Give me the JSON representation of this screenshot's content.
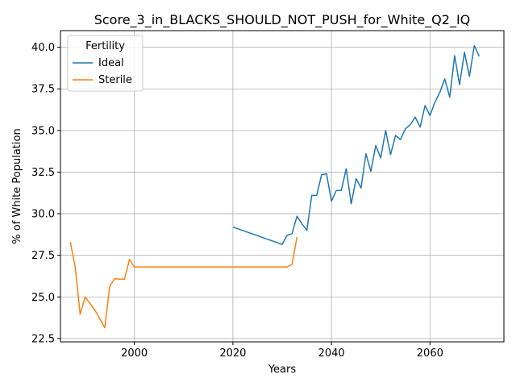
{
  "chart_data": {
    "type": "line",
    "title": "Score_3_in_BLACKS_SHOULD_NOT_PUSH_for_White_Q2_IQ",
    "xlabel": "Years",
    "ylabel": "% of White Population",
    "xlim": [
      1985,
      2075
    ],
    "ylim": [
      22.3,
      41.0
    ],
    "x_ticks": [
      2000,
      2020,
      2040,
      2060
    ],
    "x_tick_labels": [
      "2000",
      "2020",
      "2040",
      "2060"
    ],
    "y_ticks": [
      22.5,
      25.0,
      27.5,
      30.0,
      32.5,
      35.0,
      37.5,
      40.0
    ],
    "y_tick_labels": [
      "22.5",
      "25.0",
      "27.5",
      "30.0",
      "32.5",
      "35.0",
      "37.5",
      "40.0"
    ],
    "grid": true,
    "legend": {
      "title": "Fertility",
      "placement": "top-left"
    },
    "series": [
      {
        "name": "Ideal",
        "color": "#1f77b4",
        "x": [
          2020,
          2030,
          2031,
          2032,
          2033,
          2034,
          2035,
          2036,
          2037,
          2038,
          2039,
          2040,
          2041,
          2042,
          2043,
          2044,
          2045,
          2046,
          2047,
          2048,
          2049,
          2050,
          2051,
          2052,
          2053,
          2054,
          2055,
          2056,
          2057,
          2058,
          2059,
          2060,
          2061,
          2062,
          2063,
          2064,
          2065,
          2066,
          2067,
          2068,
          2069,
          2070
        ],
        "y": [
          29.2,
          28.15,
          28.7,
          28.8,
          29.85,
          29.4,
          29.0,
          31.1,
          31.1,
          32.35,
          32.4,
          30.75,
          31.4,
          31.4,
          32.7,
          30.6,
          32.1,
          31.55,
          33.6,
          32.55,
          34.1,
          33.35,
          35.0,
          33.55,
          34.7,
          34.45,
          35.1,
          35.35,
          35.8,
          35.2,
          36.5,
          35.9,
          36.7,
          37.3,
          38.1,
          37.0,
          39.5,
          37.75,
          39.7,
          38.25,
          40.1,
          39.45
        ]
      },
      {
        "name": "Sterile",
        "color": "#ff7f0e",
        "x": [
          1987,
          1988,
          1989,
          1990,
          1992,
          1994,
          1995,
          1996,
          1997,
          1998,
          1999,
          2000,
          2005,
          2010,
          2015,
          2020,
          2025,
          2030,
          2031,
          2032,
          2033
        ],
        "y": [
          28.3,
          26.8,
          23.95,
          25.0,
          24.2,
          23.15,
          25.65,
          26.1,
          26.07,
          26.07,
          27.25,
          26.8,
          26.8,
          26.8,
          26.8,
          26.8,
          26.8,
          26.8,
          26.8,
          26.95,
          28.6
        ]
      }
    ]
  }
}
